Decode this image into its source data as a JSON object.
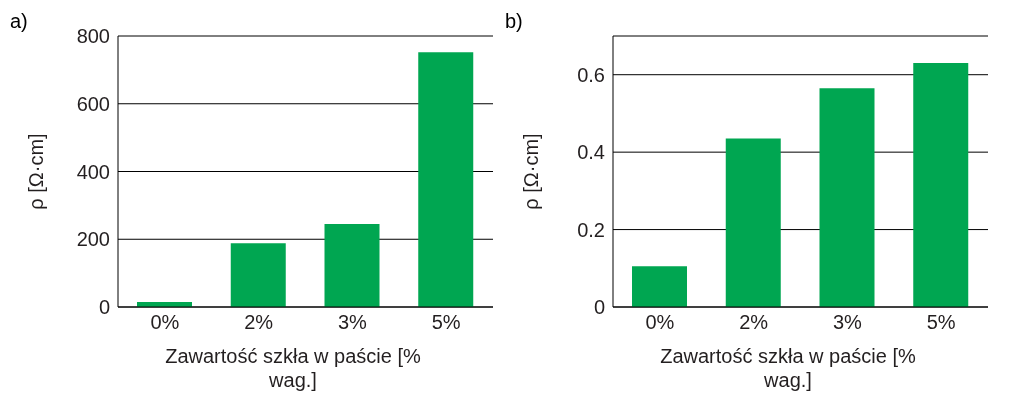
{
  "chart_data": [
    {
      "type": "bar",
      "annotations": [
        "a)"
      ],
      "xlabel": "Zawartość szkła w paście [% wag.]",
      "ylabel": "ρ [Ω·cm]",
      "categories": [
        "0%",
        "2%",
        "3%",
        "5%"
      ],
      "values": [
        15,
        188,
        245,
        752
      ],
      "color": "#00a651",
      "ylim": [
        0,
        800
      ],
      "yticks": [
        0,
        200,
        400,
        600,
        800
      ],
      "grid": "y"
    },
    {
      "type": "bar",
      "annotations": [
        "b)"
      ],
      "xlabel": "Zawartość szkła w paście [% wag.]",
      "ylabel": "ρ [Ω·cm]",
      "categories": [
        "0%",
        "2%",
        "3%",
        "5%"
      ],
      "values": [
        0.105,
        0.435,
        0.565,
        0.63
      ],
      "color": "#00a651",
      "ylim": [
        0,
        0.7
      ],
      "yticks": [
        0,
        0.2,
        0.4,
        0.6
      ],
      "grid": "y"
    }
  ]
}
